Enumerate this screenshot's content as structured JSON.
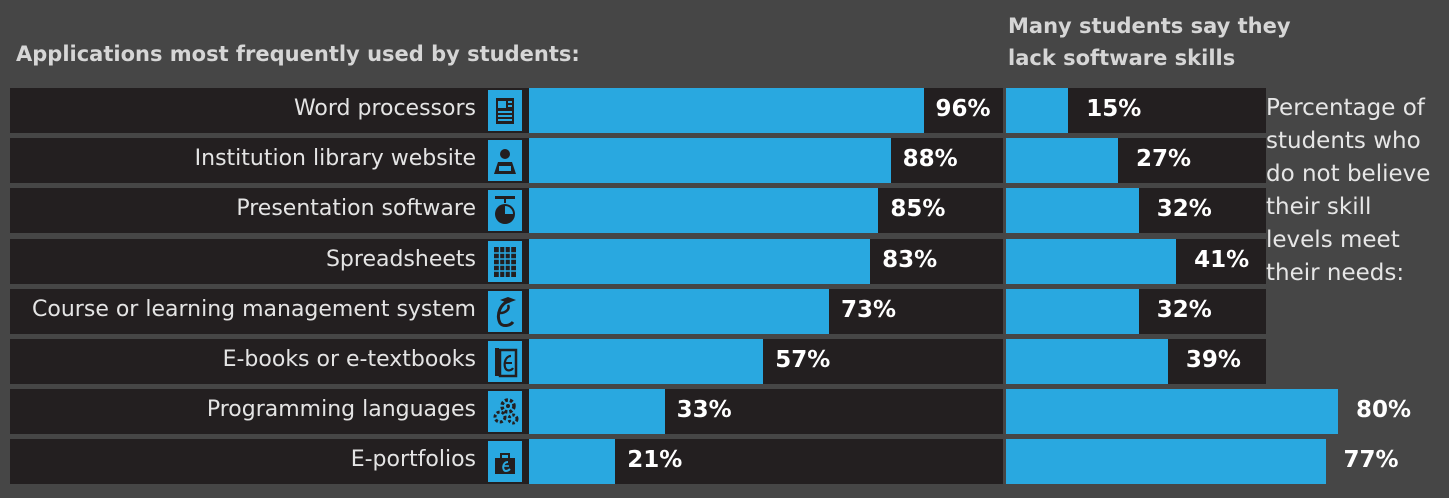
{
  "title_left": "Applications most frequently used by students:",
  "title_right_line1": "Many students say they",
  "title_right_line2": "lack software skills",
  "note_lines": [
    "Percentage of",
    "students who",
    "do not believe",
    "their skill",
    "levels meet",
    "their needs:"
  ],
  "colors": {
    "bar": "#29a8e0",
    "row": "#231f20",
    "background": "#464646"
  },
  "chart_data": [
    {
      "type": "bar",
      "orientation": "horizontal",
      "title": "Applications most frequently used by students:",
      "categories": [
        "Word processors",
        "Institution library website",
        "Presentation software",
        "Spreadsheets",
        "Course or learning management system",
        "E-books or e-textbooks",
        "Programming languages",
        "E-portfolios"
      ],
      "icons": [
        "document-icon",
        "library-reader-icon",
        "presentation-icon",
        "spreadsheet-icon",
        "lms-icon",
        "ebook-icon",
        "gears-icon",
        "briefcase-icon"
      ],
      "values": [
        96,
        88,
        85,
        83,
        73,
        57,
        33,
        21
      ],
      "labels": [
        "96%",
        "88%",
        "85%",
        "83%",
        "73%",
        "57%",
        "33%",
        "21%"
      ],
      "xlim": [
        0,
        100
      ]
    },
    {
      "type": "bar",
      "orientation": "horizontal",
      "title": "Many students say they lack software skills",
      "categories": [
        "Word processors",
        "Institution library website",
        "Presentation software",
        "Spreadsheets",
        "Course or learning management system",
        "E-books or e-textbooks",
        "Programming languages",
        "E-portfolios"
      ],
      "values": [
        15,
        27,
        32,
        41,
        32,
        39,
        80,
        77
      ],
      "labels": [
        "15%",
        "27%",
        "32%",
        "41%",
        "32%",
        "39%",
        "80%",
        "77%"
      ],
      "xlim": [
        0,
        100
      ]
    }
  ]
}
